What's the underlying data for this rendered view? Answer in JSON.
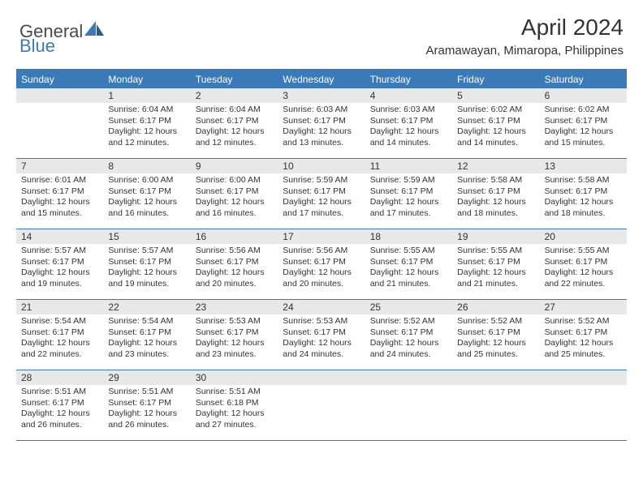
{
  "logo": {
    "text1": "General",
    "text2": "Blue"
  },
  "title": "April 2024",
  "location": "Aramawayan, Mimaropa, Philippines",
  "colors": {
    "header_bg": "#3a7ab8",
    "daynum_bg": "#e8e8e8",
    "text": "#333333",
    "border": "#3a7ab8"
  },
  "day_names": [
    "Sunday",
    "Monday",
    "Tuesday",
    "Wednesday",
    "Thursday",
    "Friday",
    "Saturday"
  ],
  "weeks": [
    [
      null,
      {
        "n": "1",
        "sr": "Sunrise: 6:04 AM",
        "ss": "Sunset: 6:17 PM",
        "dl": "Daylight: 12 hours and 12 minutes."
      },
      {
        "n": "2",
        "sr": "Sunrise: 6:04 AM",
        "ss": "Sunset: 6:17 PM",
        "dl": "Daylight: 12 hours and 12 minutes."
      },
      {
        "n": "3",
        "sr": "Sunrise: 6:03 AM",
        "ss": "Sunset: 6:17 PM",
        "dl": "Daylight: 12 hours and 13 minutes."
      },
      {
        "n": "4",
        "sr": "Sunrise: 6:03 AM",
        "ss": "Sunset: 6:17 PM",
        "dl": "Daylight: 12 hours and 14 minutes."
      },
      {
        "n": "5",
        "sr": "Sunrise: 6:02 AM",
        "ss": "Sunset: 6:17 PM",
        "dl": "Daylight: 12 hours and 14 minutes."
      },
      {
        "n": "6",
        "sr": "Sunrise: 6:02 AM",
        "ss": "Sunset: 6:17 PM",
        "dl": "Daylight: 12 hours and 15 minutes."
      }
    ],
    [
      {
        "n": "7",
        "sr": "Sunrise: 6:01 AM",
        "ss": "Sunset: 6:17 PM",
        "dl": "Daylight: 12 hours and 15 minutes."
      },
      {
        "n": "8",
        "sr": "Sunrise: 6:00 AM",
        "ss": "Sunset: 6:17 PM",
        "dl": "Daylight: 12 hours and 16 minutes."
      },
      {
        "n": "9",
        "sr": "Sunrise: 6:00 AM",
        "ss": "Sunset: 6:17 PM",
        "dl": "Daylight: 12 hours and 16 minutes."
      },
      {
        "n": "10",
        "sr": "Sunrise: 5:59 AM",
        "ss": "Sunset: 6:17 PM",
        "dl": "Daylight: 12 hours and 17 minutes."
      },
      {
        "n": "11",
        "sr": "Sunrise: 5:59 AM",
        "ss": "Sunset: 6:17 PM",
        "dl": "Daylight: 12 hours and 17 minutes."
      },
      {
        "n": "12",
        "sr": "Sunrise: 5:58 AM",
        "ss": "Sunset: 6:17 PM",
        "dl": "Daylight: 12 hours and 18 minutes."
      },
      {
        "n": "13",
        "sr": "Sunrise: 5:58 AM",
        "ss": "Sunset: 6:17 PM",
        "dl": "Daylight: 12 hours and 18 minutes."
      }
    ],
    [
      {
        "n": "14",
        "sr": "Sunrise: 5:57 AM",
        "ss": "Sunset: 6:17 PM",
        "dl": "Daylight: 12 hours and 19 minutes."
      },
      {
        "n": "15",
        "sr": "Sunrise: 5:57 AM",
        "ss": "Sunset: 6:17 PM",
        "dl": "Daylight: 12 hours and 19 minutes."
      },
      {
        "n": "16",
        "sr": "Sunrise: 5:56 AM",
        "ss": "Sunset: 6:17 PM",
        "dl": "Daylight: 12 hours and 20 minutes."
      },
      {
        "n": "17",
        "sr": "Sunrise: 5:56 AM",
        "ss": "Sunset: 6:17 PM",
        "dl": "Daylight: 12 hours and 20 minutes."
      },
      {
        "n": "18",
        "sr": "Sunrise: 5:55 AM",
        "ss": "Sunset: 6:17 PM",
        "dl": "Daylight: 12 hours and 21 minutes."
      },
      {
        "n": "19",
        "sr": "Sunrise: 5:55 AM",
        "ss": "Sunset: 6:17 PM",
        "dl": "Daylight: 12 hours and 21 minutes."
      },
      {
        "n": "20",
        "sr": "Sunrise: 5:55 AM",
        "ss": "Sunset: 6:17 PM",
        "dl": "Daylight: 12 hours and 22 minutes."
      }
    ],
    [
      {
        "n": "21",
        "sr": "Sunrise: 5:54 AM",
        "ss": "Sunset: 6:17 PM",
        "dl": "Daylight: 12 hours and 22 minutes."
      },
      {
        "n": "22",
        "sr": "Sunrise: 5:54 AM",
        "ss": "Sunset: 6:17 PM",
        "dl": "Daylight: 12 hours and 23 minutes."
      },
      {
        "n": "23",
        "sr": "Sunrise: 5:53 AM",
        "ss": "Sunset: 6:17 PM",
        "dl": "Daylight: 12 hours and 23 minutes."
      },
      {
        "n": "24",
        "sr": "Sunrise: 5:53 AM",
        "ss": "Sunset: 6:17 PM",
        "dl": "Daylight: 12 hours and 24 minutes."
      },
      {
        "n": "25",
        "sr": "Sunrise: 5:52 AM",
        "ss": "Sunset: 6:17 PM",
        "dl": "Daylight: 12 hours and 24 minutes."
      },
      {
        "n": "26",
        "sr": "Sunrise: 5:52 AM",
        "ss": "Sunset: 6:17 PM",
        "dl": "Daylight: 12 hours and 25 minutes."
      },
      {
        "n": "27",
        "sr": "Sunrise: 5:52 AM",
        "ss": "Sunset: 6:17 PM",
        "dl": "Daylight: 12 hours and 25 minutes."
      }
    ],
    [
      {
        "n": "28",
        "sr": "Sunrise: 5:51 AM",
        "ss": "Sunset: 6:17 PM",
        "dl": "Daylight: 12 hours and 26 minutes."
      },
      {
        "n": "29",
        "sr": "Sunrise: 5:51 AM",
        "ss": "Sunset: 6:17 PM",
        "dl": "Daylight: 12 hours and 26 minutes."
      },
      {
        "n": "30",
        "sr": "Sunrise: 5:51 AM",
        "ss": "Sunset: 6:18 PM",
        "dl": "Daylight: 12 hours and 27 minutes."
      },
      null,
      null,
      null,
      null
    ]
  ]
}
